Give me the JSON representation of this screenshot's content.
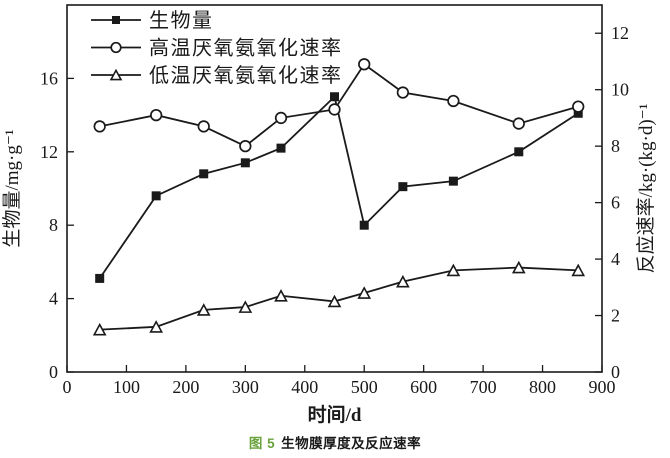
{
  "colors": {
    "ink": "#1a1a1a",
    "background": "#ffffff",
    "caption_label": "#6aa23c"
  },
  "caption": {
    "label": "图 5",
    "title": "生物膜厚度及反应速率"
  },
  "chart_data": {
    "type": "line",
    "title": "",
    "xlabel": "时间/d",
    "ylabel_left": "生物量/mg·g⁻¹",
    "ylabel_right": "反应速率/kg·(kg·d)⁻¹",
    "xlim": [
      0,
      900
    ],
    "xticks": [
      0,
      100,
      200,
      300,
      400,
      500,
      600,
      700,
      800,
      900
    ],
    "ylim_left": [
      0,
      20
    ],
    "yticks_left": [
      0,
      4,
      8,
      12,
      16
    ],
    "ylim_right": [
      0,
      13
    ],
    "yticks_right": [
      0,
      2,
      4,
      6,
      8,
      10,
      12
    ],
    "grid": false,
    "legend_position": "top-left-inside",
    "x": [
      55,
      150,
      230,
      300,
      360,
      450,
      500,
      565,
      650,
      760,
      860
    ],
    "series": [
      {
        "key": "biomass",
        "name": "生物量",
        "axis": "left",
        "marker": "filled-square",
        "values": [
          5.1,
          9.6,
          10.8,
          11.4,
          12.2,
          15.0,
          8.0,
          10.1,
          10.4,
          12.0,
          14.1
        ]
      },
      {
        "key": "high-temp-anammox-rate",
        "name": "高温厌氧氨氧化速率",
        "axis": "right",
        "marker": "open-circle",
        "values": [
          8.7,
          9.1,
          8.7,
          8.0,
          9.0,
          9.3,
          10.9,
          9.9,
          9.6,
          8.8,
          9.4
        ]
      },
      {
        "key": "low-temp-anammox-rate",
        "name": "低温厌氧氨氧化速率",
        "axis": "right",
        "marker": "open-triangle",
        "values": [
          1.5,
          1.6,
          2.2,
          2.3,
          2.7,
          2.5,
          2.8,
          3.2,
          3.6,
          3.7,
          3.6
        ]
      }
    ]
  }
}
